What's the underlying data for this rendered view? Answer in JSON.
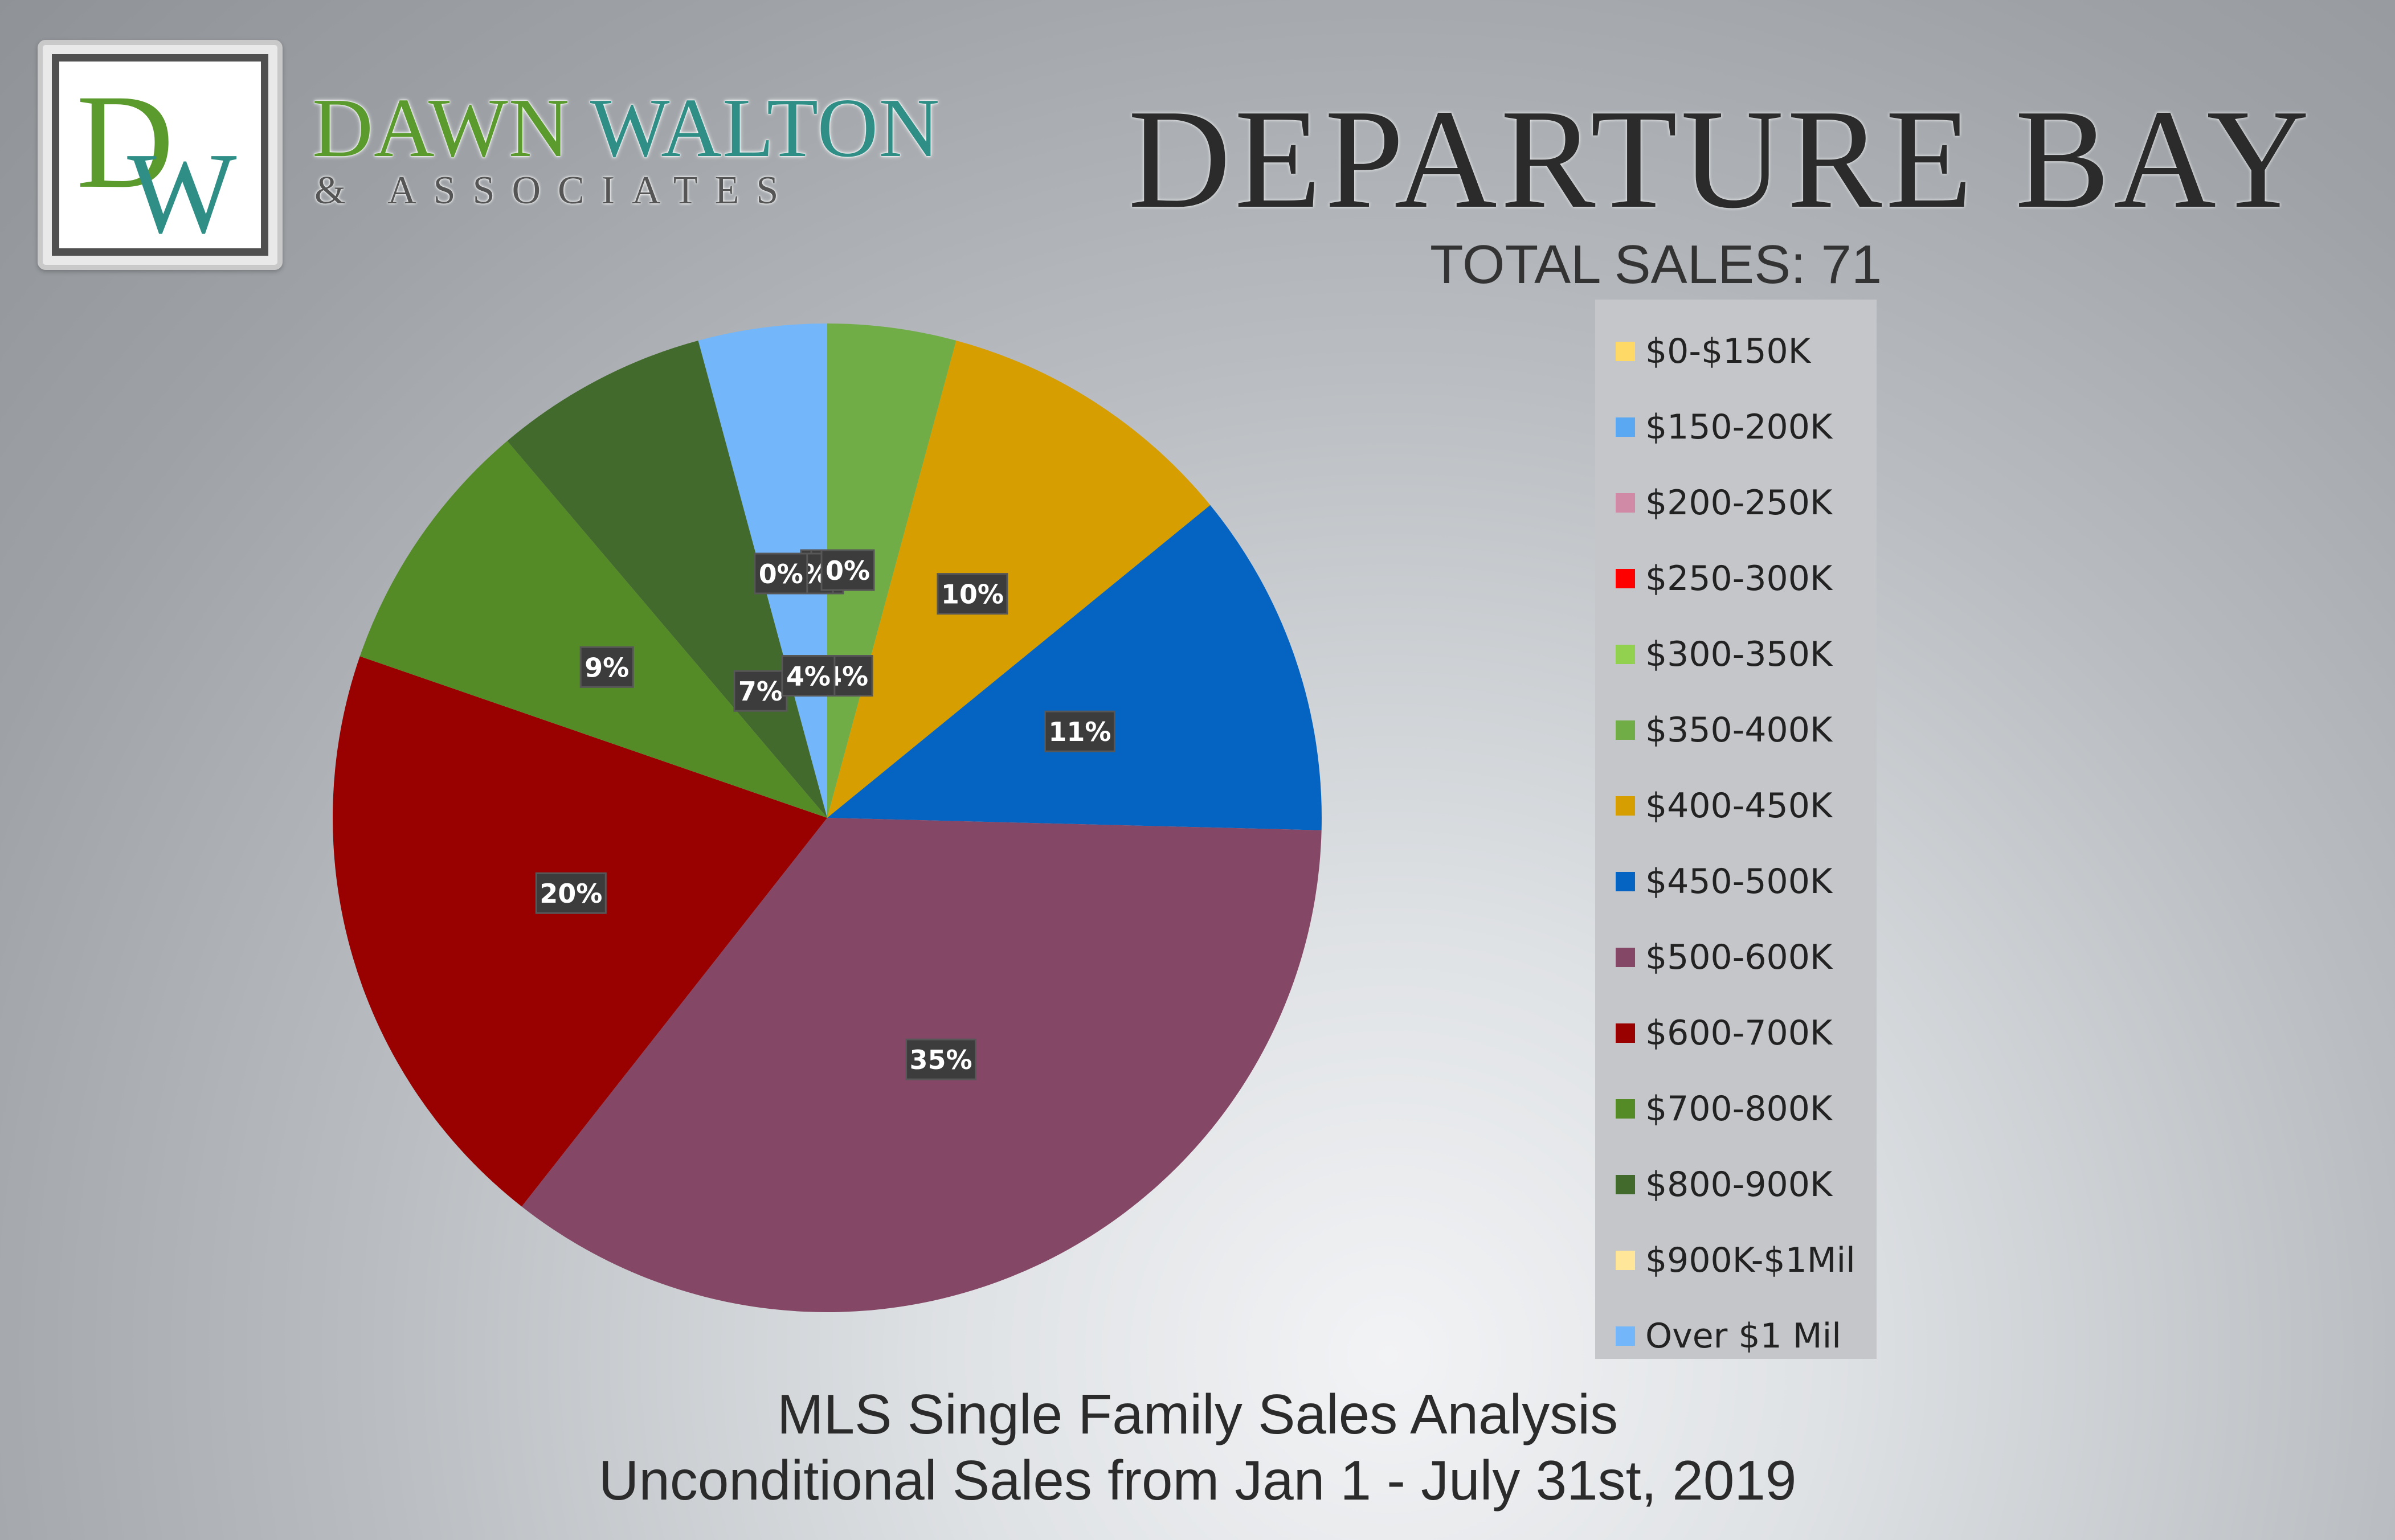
{
  "brand": {
    "monogram": "DW",
    "name_first": "DAWN",
    "name_last": "WALTON",
    "sub": "& ASSOCIATES",
    "colors": {
      "green": "#5b9a2d",
      "teal": "#2f8f86"
    }
  },
  "header": {
    "title": "Departure Bay",
    "total_sales": "TOTAL SALES: 71"
  },
  "footer": {
    "line1": "MLS Single Family Sales Analysis",
    "line2": "Unconditional Sales from Jan 1 - July 31st, 2019"
  },
  "chart_data": {
    "type": "pie",
    "categories": [
      "$0-$150K",
      "$150-200K",
      "$200-250K",
      "$250-300K",
      "$300-350K",
      "$350-400K",
      "$400-450K",
      "$450-500K",
      "$500-600K",
      "$600-700K",
      "$700-800K",
      "$800-900K",
      "$900K-$1Mil",
      "Over $1 Mil"
    ],
    "values": [
      0,
      0,
      0,
      0,
      0,
      4.2,
      9.9,
      11.3,
      35.2,
      19.7,
      8.5,
      7.0,
      0,
      4.2
    ],
    "labels": [
      "0%",
      "0%",
      "0%",
      "0%",
      "0%",
      "4%",
      "10%",
      "11%",
      "35%",
      "20%",
      "9%",
      "7%",
      "0%",
      "4%"
    ],
    "colors": [
      "#ffd966",
      "#5aa7f2",
      "#d08aa6",
      "#ff0000",
      "#92d050",
      "#70ad47",
      "#d69e00",
      "#0563c1",
      "#844766",
      "#990000",
      "#548b27",
      "#436a2d",
      "#ffe699",
      "#73b6f9"
    ],
    "legend_position": "right"
  }
}
